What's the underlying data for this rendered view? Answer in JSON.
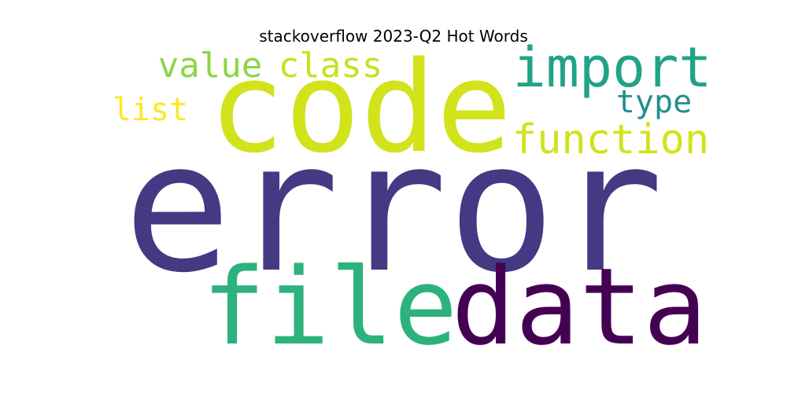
{
  "chart_data": {
    "type": "wordcloud",
    "title": "stackoverflow 2023-Q2 Hot Words",
    "words": [
      {
        "text": "error",
        "rank": 1,
        "color": "#443983"
      },
      {
        "text": "code",
        "rank": 2,
        "color": "#d2e21b"
      },
      {
        "text": "data",
        "rank": 3,
        "color": "#440154"
      },
      {
        "text": "file",
        "rank": 4,
        "color": "#2db27d"
      },
      {
        "text": "import",
        "rank": 5,
        "color": "#20a386"
      },
      {
        "text": "function",
        "rank": 6,
        "color": "#d2e21b"
      },
      {
        "text": "class",
        "rank": 7,
        "color": "#c8e020"
      },
      {
        "text": "value",
        "rank": 8,
        "color": "#8bd646"
      },
      {
        "text": "type",
        "rank": 9,
        "color": "#218f8d"
      },
      {
        "text": "list",
        "rank": 10,
        "color": "#fde725"
      }
    ]
  }
}
